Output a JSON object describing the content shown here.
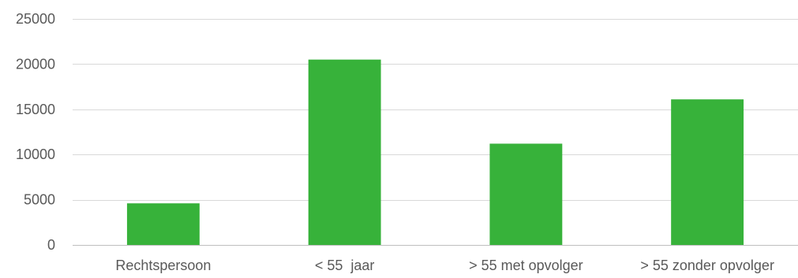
{
  "chart_data": {
    "type": "bar",
    "title": "",
    "xlabel": "",
    "ylabel": "",
    "categories": [
      "Rechtspersoon",
      "< 55  jaar",
      "> 55 met opvolger",
      "> 55 zonder opvolger"
    ],
    "values": [
      4600,
      20500,
      11200,
      16100
    ],
    "ylim": [
      0,
      25000
    ],
    "yticks": [
      0,
      5000,
      10000,
      15000,
      20000,
      25000
    ],
    "grid": true,
    "legend": "none",
    "bar_color": "#37b23a"
  }
}
